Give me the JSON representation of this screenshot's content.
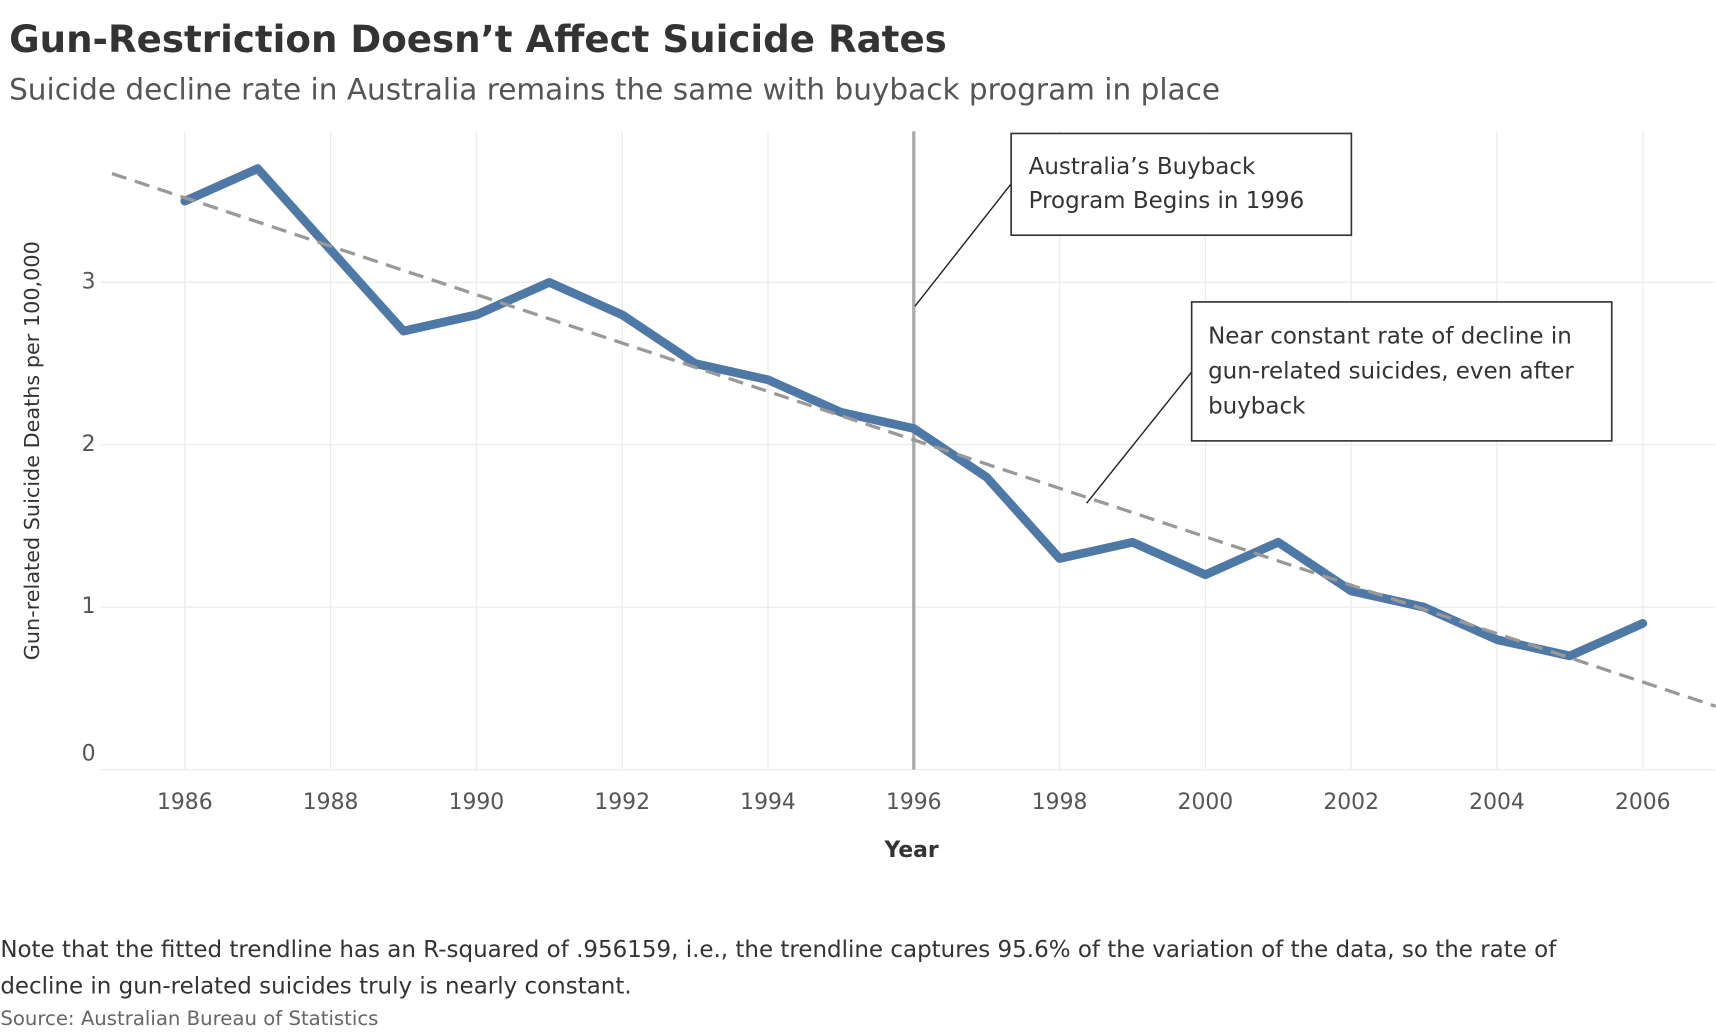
{
  "chart_data": {
    "type": "line",
    "title": "Gun-Restriction Doesn’t Affect Suicide Rates",
    "subtitle": "Suicide decline rate in Australia remains the same with buyback program in place",
    "x_label": "Year",
    "y_label": "Gun-related Suicide Deaths per 100,000",
    "x": [
      1986,
      1987,
      1988,
      1989,
      1990,
      1991,
      1992,
      1993,
      1994,
      1995,
      1996,
      1997,
      1998,
      1999,
      2000,
      2001,
      2002,
      2003,
      2004,
      2005,
      2006
    ],
    "series": [
      {
        "color": "#4e79a7",
        "values": [
          3.5,
          3.7,
          3.2,
          2.7,
          2.8,
          3.0,
          2.8,
          2.5,
          2.4,
          2.2,
          2.1,
          1.8,
          1.3,
          1.4,
          1.2,
          1.4,
          1.1,
          1.0,
          0.8,
          0.7,
          0.9
        ]
      }
    ],
    "trendline": {
      "color": "#999999",
      "x": [
        1985,
        2007
      ],
      "values": [
        3.67,
        0.39
      ]
    },
    "reference_line": {
      "x": 1996,
      "color": "#aaaaaa"
    },
    "xlim": [
      1984.85,
      2007
    ],
    "ylim": [
      0,
      3.93
    ],
    "xticks": [
      1986,
      1988,
      1990,
      1992,
      1994,
      1996,
      1998,
      2000,
      2002,
      2004,
      2006
    ],
    "yticks": [
      0,
      1,
      2,
      3
    ],
    "grid": true,
    "annotations": [
      {
        "lines": [
          "Australia’s Buyback",
          "Program Begins in 1996"
        ]
      },
      {
        "lines": [
          "Near constant rate of decline in",
          "gun-related suicides, even after",
          "buyback"
        ]
      }
    ],
    "note": [
      "Note that the fitted trendline has an R-squared of .956159, i.e., the trendline captures 95.6% of the variation of the data, so the rate of",
      "decline in gun-related suicides truly is nearly constant."
    ],
    "source": "Source: Australian Bureau of Statistics"
  }
}
